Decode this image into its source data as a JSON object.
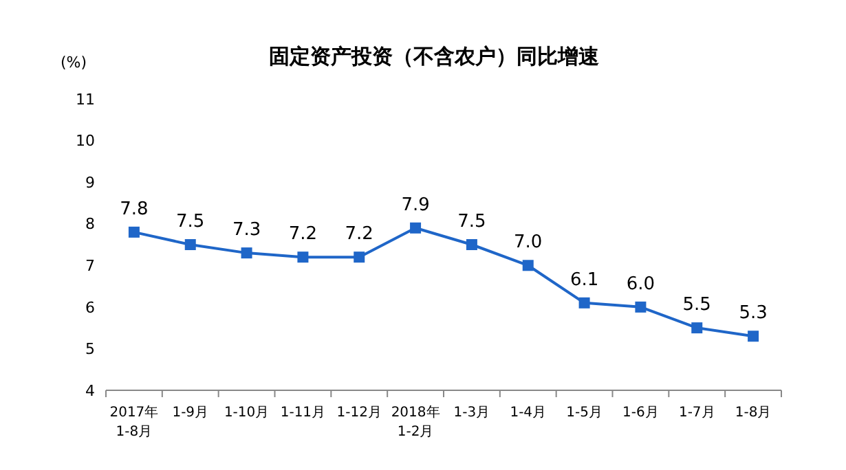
{
  "chart_data": {
    "type": "line",
    "title": "固定资产投资（不含农户）同比增速",
    "ylabel": "(%)",
    "categories": [
      "2017年\n1-8月",
      "1-9月",
      "1-10月",
      "1-11月",
      "1-12月",
      "2018年\n1-2月",
      "1-3月",
      "1-4月",
      "1-5月",
      "1-6月",
      "1-7月",
      "1-8月"
    ],
    "series": [
      {
        "color": "#1f66c8",
        "values": [
          7.8,
          7.5,
          7.3,
          7.2,
          7.2,
          7.9,
          7.5,
          7.0,
          6.1,
          6.0,
          5.5,
          5.3
        ],
        "value_labels": [
          "7.8",
          "7.5",
          "7.3",
          "7.2",
          "7.2",
          "7.9",
          "7.5",
          "7.0",
          "6.1",
          "6.0",
          "5.5",
          "5.3"
        ]
      }
    ],
    "ylim": [
      4,
      11
    ],
    "yticks": [
      4,
      5,
      6,
      7,
      8,
      9,
      10,
      11
    ],
    "grid": false,
    "marker": "square",
    "line_style": "solid"
  }
}
